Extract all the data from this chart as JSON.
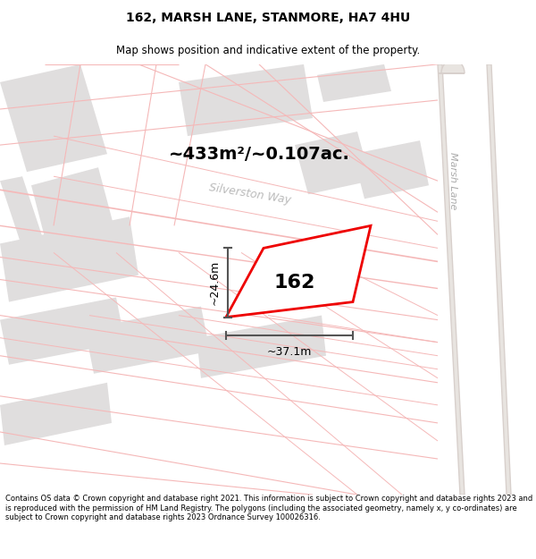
{
  "title_line1": "162, MARSH LANE, STANMORE, HA7 4HU",
  "title_line2": "Map shows position and indicative extent of the property.",
  "area_text": "~433m²/~0.107ac.",
  "label_162": "162",
  "dim_width": "~37.1m",
  "dim_height": "~24.6m",
  "street_silverstone": "Silverston Way",
  "street_marsh": "Marsh Lane",
  "footer": "Contains OS data © Crown copyright and database right 2021. This information is subject to Crown copyright and database rights 2023 and is reproduced with the permission of HM Land Registry. The polygons (including the associated geometry, namely x, y co-ordinates) are subject to Crown copyright and database rights 2023 Ordnance Survey 100026316.",
  "map_bg": "#f8f6f4",
  "red_color": "#ee0000",
  "pink": "#f5b8b8",
  "light_gray_fill": "#e0dede",
  "dark_gray": "#555555",
  "road_gray": "#d8d0cc",
  "marsh_lane_fill": "#e8e4e0",
  "title_fontsize": 10,
  "subtitle_fontsize": 8.5,
  "area_fontsize": 14,
  "label_fontsize": 16,
  "dim_fontsize": 9
}
